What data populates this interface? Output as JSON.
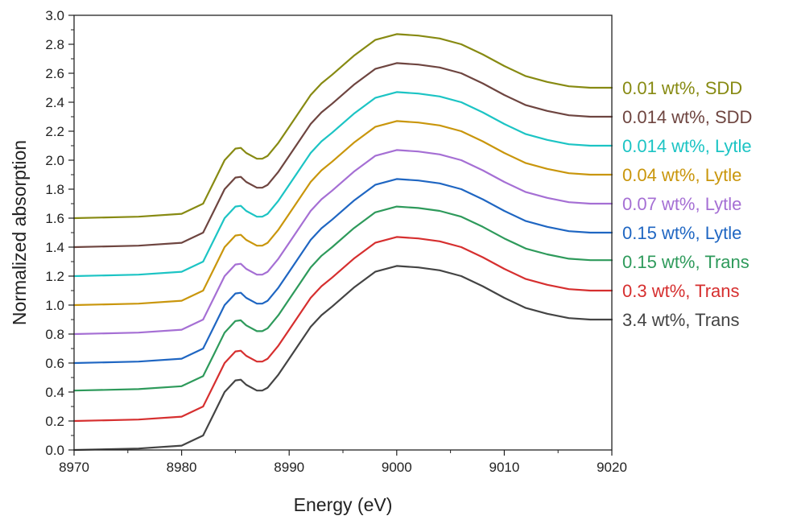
{
  "chart_data": {
    "type": "line",
    "title": "",
    "xlabel": "Energy (eV)",
    "ylabel": "Normalized absorption",
    "xlim": [
      8970,
      9020
    ],
    "ylim": [
      0.0,
      3.0
    ],
    "xticks": [
      8970,
      8980,
      8990,
      9000,
      9010,
      9020
    ],
    "xtick_labels": [
      "8970",
      "8980",
      "8990",
      "9000",
      "9010",
      "9020"
    ],
    "yticks": [
      0.0,
      0.2,
      0.4,
      0.6,
      0.8,
      1.0,
      1.2,
      1.4,
      1.6,
      1.8,
      2.0,
      2.2,
      2.4,
      2.6,
      2.8,
      3.0
    ],
    "ytick_labels": [
      "0.0",
      "0.2",
      "0.4",
      "0.6",
      "0.8",
      "1.0",
      "1.2",
      "1.4",
      "1.6",
      "1.8",
      "2.0",
      "2.2",
      "2.4",
      "2.6",
      "2.8",
      "3.0"
    ],
    "legend_position": "right",
    "base_spectrum": {
      "x": [
        8970,
        8976,
        8980,
        8982,
        8983,
        8984,
        8985,
        8985.5,
        8986,
        8987,
        8987.5,
        8988,
        8989,
        8990,
        8991,
        8992,
        8993,
        8994,
        8996,
        8998,
        9000,
        9002,
        9004,
        9006,
        9008,
        9010,
        9012,
        9014,
        9016,
        9018,
        9020
      ],
      "y": [
        0.0,
        0.01,
        0.03,
        0.1,
        0.25,
        0.4,
        0.48,
        0.485,
        0.45,
        0.41,
        0.41,
        0.43,
        0.52,
        0.63,
        0.74,
        0.85,
        0.93,
        0.99,
        1.12,
        1.23,
        1.27,
        1.26,
        1.24,
        1.2,
        1.13,
        1.05,
        0.98,
        0.94,
        0.91,
        0.9,
        0.9
      ]
    },
    "series": [
      {
        "name": "3.4 wt%, Trans",
        "legend": "3.4 wt%, Trans",
        "color": "#444444",
        "offset": 0.0
      },
      {
        "name": "0.3 wt%, Trans",
        "legend": "0.3 wt%, Trans",
        "color": "#d62f2f",
        "offset": 0.2
      },
      {
        "name": "0.15 wt%, Trans",
        "legend": "0.15 wt%, Trans",
        "color": "#2e9a5b",
        "offset": 0.41
      },
      {
        "name": "0.15 wt%, Lytle",
        "legend": "0.15 wt%, Lytle",
        "color": "#1f66c2",
        "offset": 0.6
      },
      {
        "name": "0.07 wt%, Lytle",
        "legend": "0.07 wt%, Lytle",
        "color": "#a56fd4",
        "offset": 0.8
      },
      {
        "name": "0.04 wt%, Lytle",
        "legend": "0.04 wt%, Lytle",
        "color": "#c9960c",
        "offset": 1.0
      },
      {
        "name": "0.014 wt%, Lytle",
        "legend": "0.014 wt%, Lytle",
        "color": "#1cc4c4",
        "offset": 1.2
      },
      {
        "name": "0.014 wt%, SDD",
        "legend": "0.014 wt%, SDD",
        "color": "#6e4540",
        "offset": 1.4
      },
      {
        "name": "0.01 wt%, SDD",
        "legend": "0.01 wt%, SDD",
        "color": "#878a12",
        "offset": 1.6
      }
    ]
  }
}
